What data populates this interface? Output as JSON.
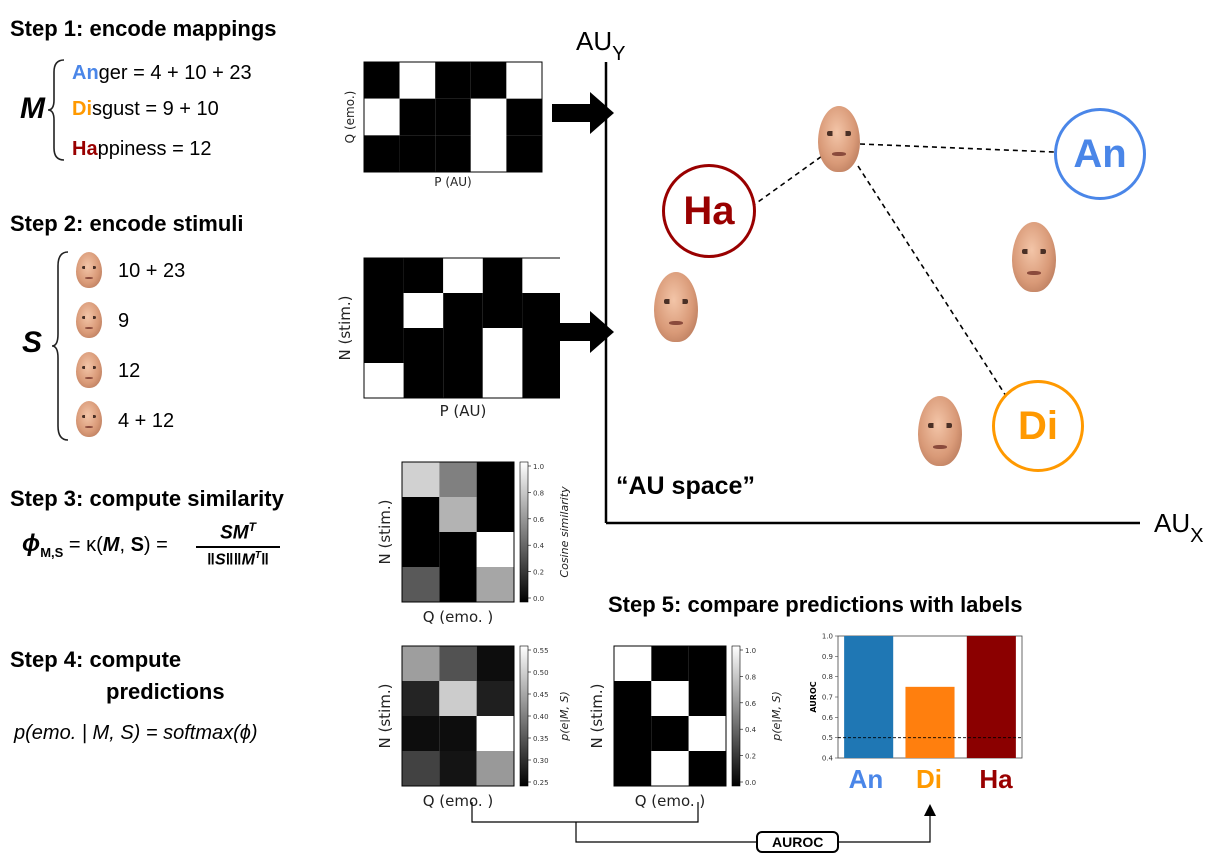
{
  "steps": {
    "s1": "Step 1: encode mappings",
    "s2": "Step 2: encode stimuli",
    "s3": "Step 3: compute similarity",
    "s4a": "Step 4: compute",
    "s4b": "predictions",
    "s5": "Step 5: compare predictions with labels"
  },
  "mappings": {
    "letter": "M",
    "rows": [
      {
        "abbr": "An",
        "rest": "ger = 4 + 10 + 23",
        "color": "#4a86e8"
      },
      {
        "abbr": "Di",
        "rest": "sgust = 9 + 10",
        "color": "#ff9900"
      },
      {
        "abbr": "Ha",
        "rest": "ppiness = 12",
        "color": "#990000"
      }
    ]
  },
  "stimuli": {
    "letter": "S",
    "rows": [
      "10 + 23",
      "9",
      "12",
      "4 + 12"
    ]
  },
  "similarity": {
    "lhs": "ϕ",
    "sub": "M,S",
    "mid": " = κ(",
    "M": "M",
    "S": "S",
    "close": ") =",
    "num": "SM",
    "numsup": "T",
    "den_a": "‖S‖‖M",
    "den_sup": "T",
    "den_b": "‖"
  },
  "prediction_formula": "p(emo. | M, S) = softmax(ϕ)",
  "matrices": {
    "mapping": {
      "xlabel": "P (AU)",
      "ylabel": "Q (emo.)",
      "cells": [
        [
          0,
          1,
          0,
          0,
          1
        ],
        [
          1,
          0,
          0,
          1,
          0
        ],
        [
          0,
          0,
          0,
          1,
          0
        ]
      ]
    },
    "stimuli": {
      "xlabel": "P (AU)",
      "ylabel": "N (stim.)",
      "cells": [
        [
          0,
          0,
          1,
          0,
          1
        ],
        [
          0,
          1,
          0,
          0,
          0
        ],
        [
          0,
          0,
          0,
          1,
          0
        ],
        [
          1,
          0,
          0,
          1,
          0
        ]
      ]
    },
    "similarity": {
      "xlabel": "Q (emo. )",
      "ylabel": "N (stim.)",
      "cbar_label": "Cosine similarity",
      "ticks": [
        "1.0",
        "0.8",
        "0.6",
        "0.4",
        "0.2",
        "0.0"
      ],
      "cells": [
        [
          0.82,
          0.5,
          0.0
        ],
        [
          0.0,
          0.7,
          0.0
        ],
        [
          0.0,
          0.0,
          1.0
        ],
        [
          0.35,
          0.0,
          0.65
        ]
      ]
    },
    "pred": {
      "xlabel": "Q (emo. )",
      "ylabel": "N (stim.)",
      "cbar_label": "p(e|M, S)",
      "ticks": [
        "0.55",
        "0.50",
        "0.45",
        "0.40",
        "0.35",
        "0.30",
        "0.25"
      ],
      "cells": [
        [
          0.62,
          0.32,
          0.05
        ],
        [
          0.14,
          0.8,
          0.12
        ],
        [
          0.05,
          0.05,
          1.0
        ],
        [
          0.26,
          0.08,
          0.6
        ]
      ]
    },
    "labels": {
      "xlabel": "Q (emo. )",
      "ylabel": "N (stim.)",
      "cbar_label": "p(e|M, S)",
      "ticks": [
        "1.0",
        "0.8",
        "0.6",
        "0.4",
        "0.2",
        "0.0"
      ],
      "cells": [
        [
          1,
          0,
          0
        ],
        [
          0,
          1,
          0
        ],
        [
          0,
          0,
          1
        ],
        [
          0,
          1,
          0
        ]
      ]
    }
  },
  "au_space": {
    "y_label": "AU",
    "y_sub": "Y",
    "x_label": "AU",
    "x_sub": "X",
    "title": "“AU space”",
    "nodes": [
      {
        "label": "Ha",
        "color": "#990000"
      },
      {
        "label": "An",
        "color": "#4a86e8"
      },
      {
        "label": "Di",
        "color": "#ff9900"
      }
    ]
  },
  "chart_data": {
    "type": "bar",
    "categories": [
      "An",
      "Di",
      "Ha"
    ],
    "values": [
      1.0,
      0.75,
      1.0
    ],
    "colors": [
      "#1f77b4",
      "#ff7f0e",
      "#8b0000"
    ],
    "category_colors": [
      "#4a86e8",
      "#ff9900",
      "#990000"
    ],
    "ylabel": "AUROC",
    "ylim": [
      0.4,
      1.0
    ],
    "yticks": [
      "1.0",
      "0.9",
      "0.8",
      "0.7",
      "0.6",
      "0.5",
      "0.4"
    ],
    "reference_line": 0.5
  },
  "auroc_box": "AUROC"
}
